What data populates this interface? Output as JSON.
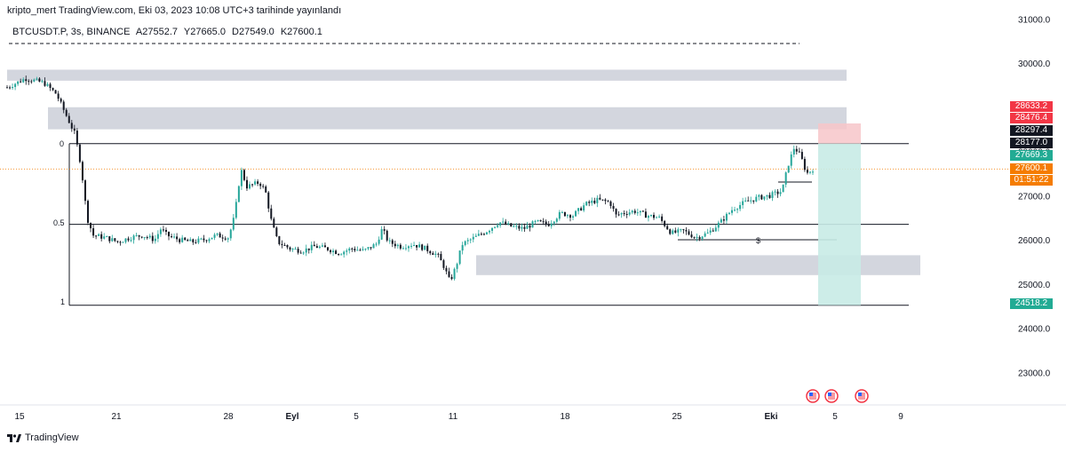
{
  "header": {
    "published": "kripto_mert TradingView.com, Eki 03, 2023 10:08 UTC+3 tarihinde yayınlandı"
  },
  "symbol_bar": {
    "symbol": "BTCUSDT.P, 3s, BINANCE",
    "open": "A27552.7",
    "high": "Y27665.0",
    "low": "D27549.0",
    "close": "K27600.1"
  },
  "footer": {
    "brand": "TradingView"
  },
  "colors": {
    "up": "#26a69a",
    "down": "#131722",
    "zone": "#d1d4dc",
    "stop_zone": "#f7c5c9",
    "target_zone": "#c8ebe5",
    "axis_text": "#131722",
    "price_red": "#f23645",
    "price_green": "#22ab94",
    "price_orange": "#f57c00",
    "price_black": "#131722"
  },
  "price_labels": [
    {
      "value": "28633.2",
      "bg": "#f23645"
    },
    {
      "value": "28476.4",
      "bg": "#f23645"
    },
    {
      "value": "28297.4",
      "bg": "#131722"
    },
    {
      "value": "28177.0",
      "bg": "#131722"
    },
    {
      "value": "27669.3",
      "bg": "#22ab94"
    },
    {
      "value": "27600.1",
      "bg": "#f57c00"
    },
    {
      "value": "01:51:22",
      "bg": "#f57c00"
    },
    {
      "value": "24518.2",
      "bg": "#22ab94"
    }
  ],
  "annotations": {
    "fib_0": "0",
    "fib_05": "0.5",
    "fib_1": "1",
    "dollar_mark": "$"
  },
  "events_icons": [
    "us-flag-icon",
    "us-flag-icon",
    "us-flag-icon"
  ],
  "chart_data": {
    "type": "candlestick",
    "title": "",
    "xlabel": "",
    "ylabel": "",
    "y_ticks": [
      23000.0,
      24000.0,
      25000.0,
      26000.0,
      27000.0,
      28000.0,
      29000.0,
      30000.0,
      31000.0
    ],
    "y_tick_labels": [
      "23000.0",
      "24000.0",
      "25000.0",
      "26000.0",
      "27000.0",
      "28000.0",
      "29000.0",
      "30000.0",
      "31000.0"
    ],
    "ylim": [
      22400,
      31100
    ],
    "x_ticks": [
      "15",
      "21",
      "28",
      "Eyl",
      "5",
      "11",
      "18",
      "25",
      "Eki",
      "5",
      "9"
    ],
    "close_path": [
      [
        0,
        29450
      ],
      [
        3,
        29650
      ],
      [
        6,
        29550
      ],
      [
        8,
        29300
      ],
      [
        10,
        28700
      ],
      [
        11,
        28400
      ],
      [
        12,
        27700
      ],
      [
        13,
        26500
      ],
      [
        14,
        26100
      ],
      [
        16,
        26050
      ],
      [
        18,
        25950
      ],
      [
        20,
        26050
      ],
      [
        22,
        26100
      ],
      [
        24,
        26000
      ],
      [
        25,
        26250
      ],
      [
        26,
        26100
      ],
      [
        28,
        26000
      ],
      [
        30,
        25950
      ],
      [
        32,
        26000
      ],
      [
        34,
        26100
      ],
      [
        36,
        26050
      ],
      [
        37,
        26550
      ],
      [
        38,
        27600
      ],
      [
        39,
        27200
      ],
      [
        41,
        27300
      ],
      [
        42,
        27100
      ],
      [
        43,
        26400
      ],
      [
        44,
        25950
      ],
      [
        46,
        25800
      ],
      [
        48,
        25750
      ],
      [
        50,
        25850
      ],
      [
        52,
        25800
      ],
      [
        54,
        25700
      ],
      [
        56,
        25800
      ],
      [
        58,
        25750
      ],
      [
        60,
        25900
      ],
      [
        61,
        26250
      ],
      [
        62,
        25950
      ],
      [
        64,
        25850
      ],
      [
        66,
        25900
      ],
      [
        68,
        25800
      ],
      [
        70,
        25650
      ],
      [
        71,
        25400
      ],
      [
        72,
        25050
      ],
      [
        73,
        25400
      ],
      [
        74,
        25900
      ],
      [
        76,
        26050
      ],
      [
        78,
        26200
      ],
      [
        80,
        26400
      ],
      [
        82,
        26300
      ],
      [
        84,
        26250
      ],
      [
        86,
        26400
      ],
      [
        88,
        26350
      ],
      [
        90,
        26600
      ],
      [
        92,
        26550
      ],
      [
        94,
        26800
      ],
      [
        96,
        26900
      ],
      [
        98,
        26850
      ],
      [
        99,
        26550
      ],
      [
        100,
        26600
      ],
      [
        102,
        26650
      ],
      [
        104,
        26550
      ],
      [
        106,
        26500
      ],
      [
        108,
        26150
      ],
      [
        110,
        26200
      ],
      [
        112,
        26050
      ],
      [
        114,
        26150
      ],
      [
        116,
        26400
      ],
      [
        118,
        26700
      ],
      [
        120,
        26850
      ],
      [
        122,
        26950
      ],
      [
        124,
        27000
      ],
      [
        126,
        27100
      ],
      [
        127,
        27700
      ],
      [
        128,
        28100
      ],
      [
        129,
        27900
      ],
      [
        130,
        27500
      ],
      [
        131,
        27600
      ]
    ],
    "x_index_range": [
      0,
      131
    ],
    "zones": [
      {
        "name": "supply-zone-top",
        "y": [
          29600,
          29850
        ]
      },
      {
        "name": "supply-zone-mid",
        "y": [
          28500,
          29000
        ]
      },
      {
        "name": "demand-zone",
        "y": [
          25200,
          25650
        ]
      }
    ],
    "levels": [
      {
        "label": "0",
        "y": 28177.0
      },
      {
        "label": "0.5",
        "y": 26350
      },
      {
        "label": "1",
        "y": 24518.2
      }
    ],
    "position": {
      "entry": 28177.0,
      "stop": 28633.2,
      "target": 24518.2
    }
  }
}
